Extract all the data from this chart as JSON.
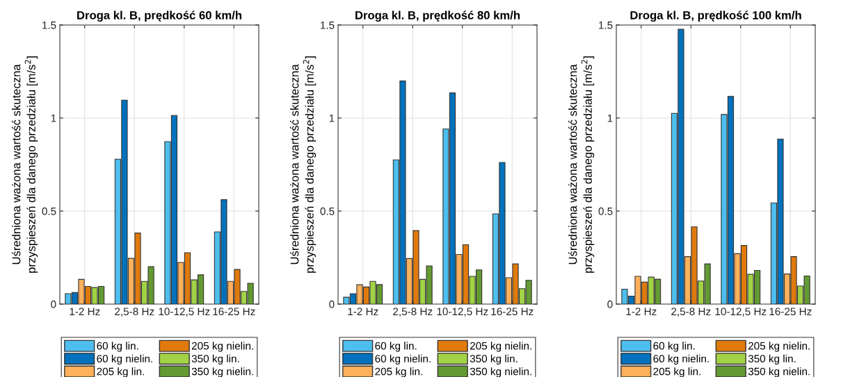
{
  "chart_data": [
    {
      "type": "bar",
      "title": "Droga kl. B, prędkość 60 km/h",
      "ylabel": "Uśredniona ważona wartość skuteczna\nprzyspieszeń dla danego przedziału [m/s$^{2}$]",
      "categories": [
        "1-2 Hz",
        "2,5-8 Hz",
        "10-12,5 Hz",
        "16-25 Hz"
      ],
      "ylim": [
        0,
        1.5
      ],
      "yticks": [
        0,
        0.5,
        1,
        1.5
      ],
      "grid": true,
      "legend": "bottom",
      "series": [
        {
          "name": "60 kg lin.",
          "color": "#4dbeee",
          "values": [
            0.056,
            0.779,
            0.873,
            0.388
          ]
        },
        {
          "name": "60 kg nielin.",
          "color": "#0072bd",
          "values": [
            0.062,
            1.096,
            1.014,
            0.561
          ]
        },
        {
          "name": "205 kg lin.",
          "color": "#ffb05a",
          "values": [
            0.133,
            0.246,
            0.224,
            0.122
          ]
        },
        {
          "name": "205 kg nielin.",
          "color": "#e07a0c",
          "values": [
            0.095,
            0.382,
            0.276,
            0.186
          ]
        },
        {
          "name": "350 kg lin.",
          "color": "#a2d344",
          "values": [
            0.089,
            0.122,
            0.13,
            0.068
          ]
        },
        {
          "name": "350 kg nielin.",
          "color": "#639a32",
          "values": [
            0.095,
            0.201,
            0.157,
            0.112
          ]
        }
      ]
    },
    {
      "type": "bar",
      "title": "Droga kl. B, prędkość 80 km/h",
      "ylabel": "Uśredniona ważona wartość skuteczna\nprzyspieszeń dla danego przedziału [m/s$^{2}$]",
      "categories": [
        "1-2 Hz",
        "2,5-8 Hz",
        "10-12,5 Hz",
        "16-25 Hz"
      ],
      "ylim": [
        0,
        1.5
      ],
      "yticks": [
        0,
        0.5,
        1,
        1.5
      ],
      "grid": true,
      "legend": "bottom",
      "series": [
        {
          "name": "60 kg lin.",
          "color": "#4dbeee",
          "values": [
            0.037,
            0.775,
            0.941,
            0.485
          ]
        },
        {
          "name": "60 kg nielin.",
          "color": "#0072bd",
          "values": [
            0.056,
            1.199,
            1.135,
            0.761
          ]
        },
        {
          "name": "205 kg lin.",
          "color": "#ffb05a",
          "values": [
            0.104,
            0.245,
            0.267,
            0.142
          ]
        },
        {
          "name": "205 kg nielin.",
          "color": "#e07a0c",
          "values": [
            0.092,
            0.395,
            0.319,
            0.216
          ]
        },
        {
          "name": "350 kg lin.",
          "color": "#a2d344",
          "values": [
            0.122,
            0.133,
            0.149,
            0.083
          ]
        },
        {
          "name": "350 kg nielin.",
          "color": "#639a32",
          "values": [
            0.105,
            0.205,
            0.184,
            0.128
          ]
        }
      ]
    },
    {
      "type": "bar",
      "title": "Droga kl. B, prędkość 100 km/h",
      "ylabel": "Uśredniona ważona wartość skuteczna\nprzyspieszeń dla danego przedziału [m/s$^{2}$]",
      "categories": [
        "1-2 Hz",
        "2,5-8 Hz",
        "10-12,5 Hz",
        "16-25 Hz"
      ],
      "ylim": [
        0,
        1.5
      ],
      "yticks": [
        0,
        0.5,
        1,
        1.5
      ],
      "grid": true,
      "legend": "bottom",
      "series": [
        {
          "name": "60 kg lin.",
          "color": "#4dbeee",
          "values": [
            0.08,
            1.025,
            1.019,
            0.544
          ]
        },
        {
          "name": "60 kg nielin.",
          "color": "#0072bd",
          "values": [
            0.043,
            1.477,
            1.116,
            0.887
          ]
        },
        {
          "name": "205 kg lin.",
          "color": "#ffb05a",
          "values": [
            0.149,
            0.255,
            0.271,
            0.162
          ]
        },
        {
          "name": "205 kg nielin.",
          "color": "#e07a0c",
          "values": [
            0.118,
            0.415,
            0.315,
            0.255
          ]
        },
        {
          "name": "350 kg lin.",
          "color": "#a2d344",
          "values": [
            0.145,
            0.124,
            0.16,
            0.097
          ]
        },
        {
          "name": "350 kg nielin.",
          "color": "#639a32",
          "values": [
            0.134,
            0.216,
            0.181,
            0.151
          ]
        }
      ]
    }
  ]
}
